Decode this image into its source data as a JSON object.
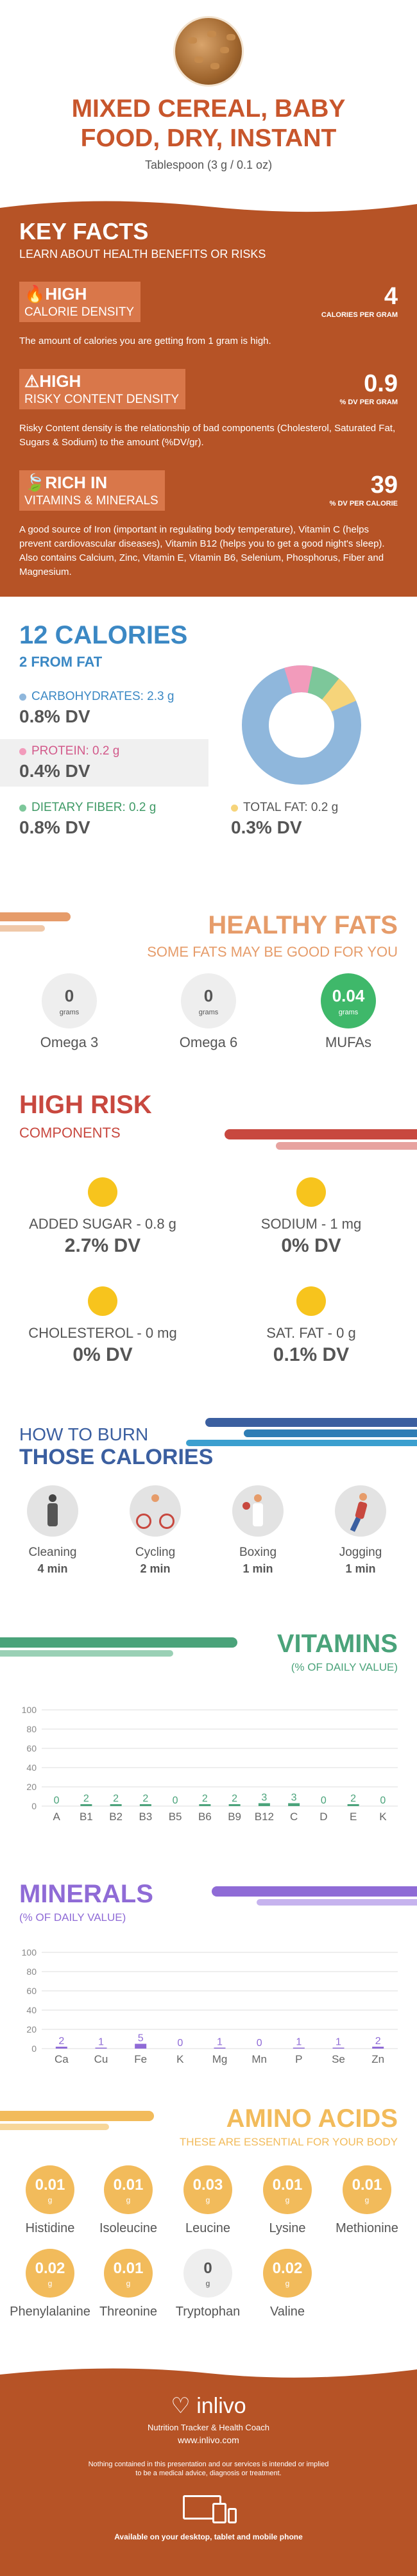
{
  "header": {
    "title_line1": "MIXED CEREAL, BABY",
    "title_line2": "FOOD, DRY, INSTANT",
    "serving": "Tablespoon (3 g / 0.1 oz)"
  },
  "key_facts": {
    "heading": "KEY FACTS",
    "subheading": "LEARN ABOUT HEALTH BENEFITS OR RISKS",
    "rows": [
      {
        "level": "HIGH",
        "label": "CALORIE DENSITY",
        "value": "4",
        "unit": "CALORIES PER GRAM",
        "desc": "The amount of calories you are getting from 1 gram is high."
      },
      {
        "level": "HIGH",
        "label": "RISKY CONTENT DENSITY",
        "value": "0.9",
        "unit": "% DV PER GRAM",
        "desc": "Risky Content density is the relationship of bad components (Cholesterol, Saturated Fat, Sugars & Sodium) to the amount (%DV/gr)."
      },
      {
        "level": "RICH  IN",
        "label": "VITAMINS & MINERALS",
        "value": "39",
        "unit": "% DV PER CALORIE",
        "desc": "A good source of Iron (important in regulating body temperature), Vitamin C (helps prevent cardiovascular diseases), Vitamin B12 (helps you to get a good night's sleep). Also contains Calcium, Zinc, Vitamin E, Vitamin B6, Selenium, Phosphorus, Fiber and Magnesium."
      }
    ]
  },
  "calories": {
    "heading": "12 CALORIES",
    "sub": "2 FROM FAT",
    "carbs": {
      "label": "CARBOHYDRATES: 2.3 g",
      "dv": "0.8% DV",
      "color": "#8fb7dc"
    },
    "protein": {
      "label": "PROTEIN: 0.2 g",
      "dv": "0.4% DV",
      "color": "#f29bbb"
    },
    "fiber": {
      "label": "DIETARY FIBER: 0.2 g",
      "dv": "0.8% DV",
      "color": "#7dc79a"
    },
    "fat": {
      "label": "TOTAL FAT: 0.2 g",
      "dv": "0.3% DV",
      "color": "#f6d47a"
    }
  },
  "healthy_fats": {
    "heading": "HEALTHY FATS",
    "sub": "SOME FATS MAY BE GOOD FOR YOU",
    "items": [
      {
        "value": "0",
        "unit": "grams",
        "name": "Omega 3"
      },
      {
        "value": "0",
        "unit": "grams",
        "name": "Omega 6"
      },
      {
        "value": "0.04",
        "unit": "grams",
        "name": "MUFAs"
      }
    ]
  },
  "high_risk": {
    "heading": "HIGH RISK",
    "sub": "COMPONENTS",
    "items": [
      {
        "label": "ADDED SUGAR - 0.8 g",
        "dv": "2.7% DV"
      },
      {
        "label": "SODIUM - 1 mg",
        "dv": "0% DV"
      },
      {
        "label": "CHOLESTEROL - 0 mg",
        "dv": "0% DV"
      },
      {
        "label": "SAT. FAT - 0 g",
        "dv": "0.1% DV"
      }
    ]
  },
  "burn": {
    "heading1": "HOW TO BURN",
    "heading2": "THOSE CALORIES",
    "items": [
      {
        "name": "Cleaning",
        "time": "4 min"
      },
      {
        "name": "Cycling",
        "time": "2 min"
      },
      {
        "name": "Boxing",
        "time": "1 min"
      },
      {
        "name": "Jogging",
        "time": "1 min"
      }
    ]
  },
  "chart_data": [
    {
      "type": "bar",
      "title": "VITAMINS",
      "subtitle": "(% OF DAILY VALUE)",
      "categories": [
        "A",
        "B1",
        "B2",
        "B3",
        "B5",
        "B6",
        "B9",
        "B12",
        "C",
        "D",
        "E",
        "K"
      ],
      "values": [
        0,
        2,
        2,
        2,
        0,
        2,
        2,
        3,
        3,
        0,
        2,
        0
      ],
      "yticks": [
        "0",
        "20",
        "40",
        "60",
        "80",
        "100"
      ],
      "ylim": [
        0,
        100
      ],
      "color": "#4aa37a"
    },
    {
      "type": "bar",
      "title": "MINERALS",
      "subtitle": "(% OF DAILY VALUE)",
      "categories": [
        "Ca",
        "Cu",
        "Fe",
        "K",
        "Mg",
        "Mn",
        "P",
        "Se",
        "Zn"
      ],
      "values": [
        2,
        1,
        5,
        0,
        1,
        0,
        1,
        1,
        2
      ],
      "yticks": [
        "0",
        "20",
        "40",
        "60",
        "80",
        "100"
      ],
      "ylim": [
        0,
        100
      ],
      "color": "#8f6bd6"
    }
  ],
  "amino": {
    "heading": "AMINO ACIDS",
    "sub": "THESE ARE ESSENTIAL FOR YOUR BODY",
    "items": [
      {
        "value": "0.01",
        "unit": "g",
        "name": "Histidine"
      },
      {
        "value": "0.01",
        "unit": "g",
        "name": "Isoleucine"
      },
      {
        "value": "0.03",
        "unit": "g",
        "name": "Leucine"
      },
      {
        "value": "0.01",
        "unit": "g",
        "name": "Lysine"
      },
      {
        "value": "0.01",
        "unit": "g",
        "name": "Methionine"
      },
      {
        "value": "0.02",
        "unit": "g",
        "name": "Phenylalanine"
      },
      {
        "value": "0.01",
        "unit": "g",
        "name": "Threonine"
      },
      {
        "value": "0",
        "unit": "g",
        "name": "Tryptophan"
      },
      {
        "value": "0.02",
        "unit": "g",
        "name": "Valine"
      }
    ]
  },
  "footer": {
    "brand": "inlivo",
    "tagline": "Nutrition Tracker & Health Coach",
    "url": "www.inlivo.com",
    "disclaimer1": "Nothing contained in this presentation and our services is intended or implied",
    "disclaimer2": "to be a medical advice, diagnosis or treatment.",
    "devices": "Available on your desktop, tablet and mobile phone"
  }
}
